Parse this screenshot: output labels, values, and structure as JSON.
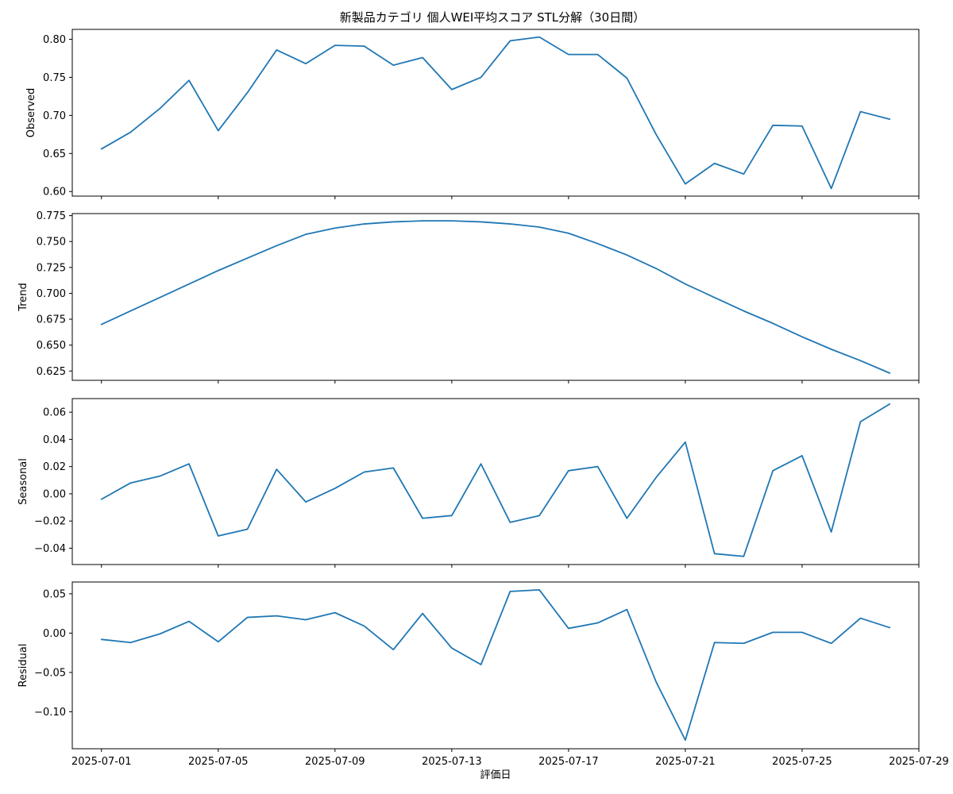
{
  "colors": {
    "line": "#1f77b4"
  },
  "chart_data": {
    "type": "line",
    "title": "新製品カテゴリ 個人WEI平均スコア STL分解（30日間）",
    "xlabel": "評価日",
    "x": [
      "2025-07-01",
      "2025-07-02",
      "2025-07-03",
      "2025-07-04",
      "2025-07-05",
      "2025-07-06",
      "2025-07-07",
      "2025-07-08",
      "2025-07-09",
      "2025-07-10",
      "2025-07-11",
      "2025-07-12",
      "2025-07-13",
      "2025-07-14",
      "2025-07-15",
      "2025-07-16",
      "2025-07-17",
      "2025-07-18",
      "2025-07-19",
      "2025-07-20",
      "2025-07-21",
      "2025-07-22",
      "2025-07-23",
      "2025-07-24",
      "2025-07-25",
      "2025-07-26",
      "2025-07-27",
      "2025-07-28"
    ],
    "x_tick_labels": [
      "2025-07-01",
      "2025-07-05",
      "2025-07-09",
      "2025-07-13",
      "2025-07-17",
      "2025-07-21",
      "2025-07-25",
      "2025-07-29"
    ],
    "xlim": [
      "2025-06-30",
      "2025-07-29"
    ],
    "grid": false,
    "panels": [
      {
        "ylabel": "Observed",
        "ylim": [
          0.594,
          0.813
        ],
        "y_ticks": [
          "0.60",
          "0.65",
          "0.70",
          "0.75",
          "0.80"
        ],
        "values": [
          0.656,
          0.678,
          0.709,
          0.746,
          0.68,
          0.73,
          0.786,
          0.768,
          0.792,
          0.791,
          0.766,
          0.776,
          0.734,
          0.75,
          0.798,
          0.803,
          0.78,
          0.78,
          0.749,
          0.675,
          0.61,
          0.637,
          0.623,
          0.687,
          0.686,
          0.604,
          0.705,
          0.695
        ]
      },
      {
        "ylabel": "Trend",
        "ylim": [
          0.616,
          0.777
        ],
        "y_ticks": [
          "0.625",
          "0.650",
          "0.675",
          "0.700",
          "0.725",
          "0.750",
          "0.775"
        ],
        "values": [
          0.67,
          0.683,
          0.696,
          0.709,
          0.722,
          0.734,
          0.746,
          0.757,
          0.763,
          0.767,
          0.769,
          0.77,
          0.77,
          0.769,
          0.767,
          0.764,
          0.758,
          0.748,
          0.737,
          0.724,
          0.709,
          0.696,
          0.683,
          0.671,
          0.658,
          0.646,
          0.635,
          0.623
        ]
      },
      {
        "ylabel": "Seasonal",
        "ylim": [
          -0.052,
          0.07
        ],
        "y_ticks": [
          "−0.04",
          "−0.02",
          "0.00",
          "0.02",
          "0.04",
          "0.06"
        ],
        "values": [
          -0.004,
          0.008,
          0.013,
          0.022,
          -0.031,
          -0.026,
          0.018,
          -0.006,
          0.004,
          0.016,
          0.019,
          -0.018,
          -0.016,
          0.022,
          -0.021,
          -0.016,
          0.017,
          0.02,
          -0.018,
          0.012,
          0.038,
          -0.044,
          -0.046,
          0.017,
          0.028,
          -0.028,
          0.053,
          0.066
        ]
      },
      {
        "ylabel": "Residual",
        "ylim": [
          -0.147,
          0.065
        ],
        "y_ticks": [
          "−0.10",
          "−0.05",
          "0.00",
          "0.05"
        ],
        "values": [
          -0.008,
          -0.012,
          -0.001,
          0.015,
          -0.011,
          0.02,
          0.022,
          0.017,
          0.026,
          0.009,
          -0.021,
          0.025,
          -0.019,
          -0.04,
          0.053,
          0.055,
          0.006,
          0.013,
          0.03,
          -0.062,
          -0.136,
          -0.012,
          -0.013,
          0.001,
          0.001,
          -0.013,
          0.019,
          0.007
        ]
      }
    ]
  }
}
